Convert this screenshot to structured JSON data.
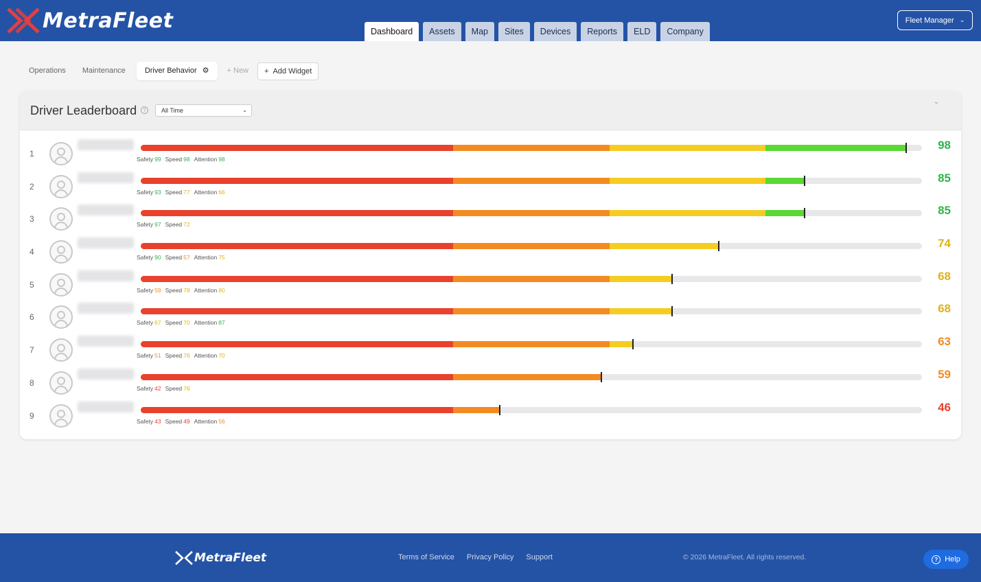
{
  "brand": {
    "name": "MetraFleet",
    "accent": "#2453a6",
    "logo_red": "#e04040"
  },
  "nav": {
    "tabs": [
      {
        "label": "Dashboard",
        "active": true
      },
      {
        "label": "Assets",
        "active": false
      },
      {
        "label": "Map",
        "active": false
      },
      {
        "label": "Sites",
        "active": false
      },
      {
        "label": "Devices",
        "active": false
      },
      {
        "label": "Reports",
        "active": false
      },
      {
        "label": "ELD",
        "active": false
      },
      {
        "label": "Company",
        "active": false
      }
    ],
    "role": "Fleet Manager"
  },
  "dashboard_tabs": {
    "items": [
      "Operations",
      "Maintenance",
      "Driver Behavior"
    ],
    "active": "Driver Behavior",
    "new_label": "New",
    "add_widget_label": "Add Widget"
  },
  "leaderboard": {
    "title": "Driver Leaderboard",
    "period": "All Time",
    "labels": {
      "safety": "Safety",
      "speed": "Speed",
      "attention": "Attention"
    },
    "colors": {
      "red": "#e8412c",
      "orange": "#f38b22",
      "yellow": "#f5cd22",
      "green": "#5ad835",
      "track": "#e8e8ea"
    },
    "rows": [
      {
        "rank": "1",
        "score": 98,
        "safety": "99",
        "speed": "98",
        "attention": "98"
      },
      {
        "rank": "2",
        "score": 85,
        "safety": "93",
        "speed": "77",
        "attention": "66"
      },
      {
        "rank": "3",
        "score": 85,
        "safety": "97",
        "speed": "72",
        "attention": null
      },
      {
        "rank": "4",
        "score": 74,
        "safety": "90",
        "speed": "57",
        "attention": "75"
      },
      {
        "rank": "5",
        "score": 68,
        "safety": "59",
        "speed": "78",
        "attention": "80"
      },
      {
        "rank": "6",
        "score": 68,
        "safety": "67",
        "speed": "70",
        "attention": "87"
      },
      {
        "rank": "7",
        "score": 63,
        "safety": "51",
        "speed": "76",
        "attention": "70"
      },
      {
        "rank": "8",
        "score": 59,
        "safety": "42",
        "speed": "76",
        "attention": null
      },
      {
        "rank": "9",
        "score": 46,
        "safety": "43",
        "speed": "49",
        "attention": "56"
      }
    ]
  },
  "footer": {
    "links": [
      "Terms of Service",
      "Privacy Policy",
      "Support"
    ],
    "copyright": "© 2026 MetraFleet. All rights reserved.",
    "help_label": "Help"
  }
}
